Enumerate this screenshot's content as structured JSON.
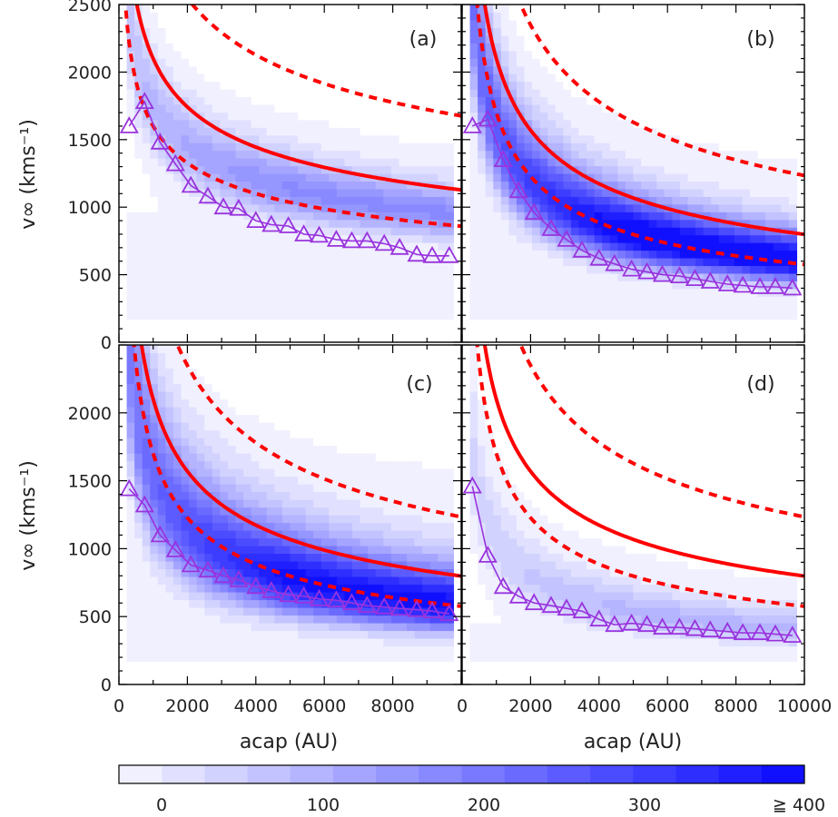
{
  "chart_data": [
    {
      "type": "heatmap",
      "panel_label": "(a)",
      "xlim": [
        0,
        10000
      ],
      "ylim": [
        0,
        2500
      ],
      "yticks": [
        0,
        500,
        1000,
        1500,
        2000,
        2500
      ],
      "ylabel": "v∞ (kms⁻¹)",
      "xlabel": "",
      "curves": {
        "solid": {
          "color": "#ff0000",
          "k": 2100,
          "p": 0.27
        },
        "dashed_upper": {
          "color": "#ff0000",
          "k": 3050,
          "p": 0.26
        },
        "dashed_lower": {
          "color": "#ff0000",
          "k": 1600,
          "p": 0.27
        }
      },
      "triangles": {
        "color": "#9933dd",
        "x": [
          300,
          750,
          1200,
          1650,
          2100,
          2600,
          3050,
          3500,
          4000,
          4450,
          4950,
          5400,
          5850,
          6350,
          6800,
          7250,
          7750,
          8200,
          8700,
          9150,
          9650
        ],
        "y": [
          1600,
          1780,
          1480,
          1320,
          1160,
          1080,
          1000,
          990,
          900,
          870,
          860,
          800,
          790,
          760,
          750,
          750,
          730,
          700,
          650,
          640,
          640
        ]
      },
      "density": {
        "center_k": 2150,
        "spread": 0.15,
        "peak": 180,
        "background": 20
      }
    },
    {
      "type": "heatmap",
      "panel_label": "(b)",
      "xlim": [
        0,
        10000
      ],
      "ylim": [
        0,
        2500
      ],
      "yticks": [],
      "ylabel": "",
      "xlabel": "",
      "curves": {
        "solid": {
          "color": "#ff0000",
          "k": 2100,
          "p": 0.42
        },
        "dashed_upper": {
          "color": "#ff0000",
          "k": 3100,
          "p": 0.4
        },
        "dashed_lower": {
          "color": "#ff0000",
          "k": 1700,
          "p": 0.47
        }
      },
      "triangles": {
        "color": "#9933dd",
        "x": [
          300,
          750,
          1200,
          1650,
          2100,
          2600,
          3050,
          3500,
          4000,
          4450,
          4950,
          5400,
          5850,
          6350,
          6800,
          7250,
          7750,
          8200,
          8700,
          9150,
          9650
        ],
        "y": [
          1600,
          1650,
          1350,
          1120,
          960,
          840,
          760,
          680,
          620,
          580,
          540,
          520,
          500,
          490,
          470,
          450,
          430,
          420,
          410,
          410,
          400
        ]
      },
      "density": {
        "center_k": 1950,
        "spread": 0.22,
        "peak": 420,
        "background": 25
      }
    },
    {
      "type": "heatmap",
      "panel_label": "(c)",
      "xlim": [
        0,
        10000
      ],
      "ylim": [
        0,
        2500
      ],
      "yticks": [
        0,
        500,
        1000,
        1500,
        2000
      ],
      "ylabel": "v∞ (kms⁻¹)",
      "xlabel": "acap (AU)",
      "xticks": [
        0,
        2000,
        4000,
        6000,
        8000
      ],
      "curves": {
        "solid": {
          "color": "#ff0000",
          "k": 2100,
          "p": 0.42
        },
        "dashed_upper": {
          "color": "#ff0000",
          "k": 3100,
          "p": 0.4
        },
        "dashed_lower": {
          "color": "#ff0000",
          "k": 1700,
          "p": 0.47
        }
      },
      "triangles": {
        "color": "#9933dd",
        "x": [
          300,
          750,
          1200,
          1650,
          2100,
          2600,
          3050,
          3500,
          4000,
          4450,
          4950,
          5400,
          5850,
          6350,
          6800,
          7250,
          7750,
          8200,
          8700,
          9150,
          9650
        ],
        "y": [
          1440,
          1320,
          1100,
          990,
          880,
          840,
          800,
          770,
          720,
          690,
          660,
          650,
          630,
          620,
          600,
          580,
          570,
          560,
          550,
          540,
          520
        ]
      },
      "density": {
        "center_k": 1900,
        "spread": 0.28,
        "peak": 380,
        "background": 30
      }
    },
    {
      "type": "heatmap",
      "panel_label": "(d)",
      "xlim": [
        0,
        10000
      ],
      "ylim": [
        0,
        2500
      ],
      "yticks": [],
      "ylabel": "",
      "xlabel": "acap (AU)",
      "xticks": [
        0,
        2000,
        4000,
        6000,
        8000,
        10000
      ],
      "curves": {
        "solid": {
          "color": "#ff0000",
          "k": 2100,
          "p": 0.42
        },
        "dashed_upper": {
          "color": "#ff0000",
          "k": 3100,
          "p": 0.4
        },
        "dashed_lower": {
          "color": "#ff0000",
          "k": 1700,
          "p": 0.47
        }
      },
      "triangles": {
        "color": "#9933dd",
        "x": [
          300,
          750,
          1200,
          1650,
          2100,
          2600,
          3050,
          3500,
          4000,
          4450,
          4950,
          5400,
          5850,
          6350,
          6800,
          7250,
          7750,
          8200,
          8700,
          9150,
          9650
        ],
        "y": [
          1460,
          950,
          720,
          650,
          600,
          580,
          560,
          540,
          480,
          440,
          450,
          440,
          420,
          420,
          410,
          400,
          390,
          380,
          380,
          370,
          360
        ]
      },
      "density": {
        "center_k": 1300,
        "spread": 0.22,
        "peak": 110,
        "background": 15
      }
    }
  ],
  "colorbar": {
    "ticks": [
      0,
      100,
      200,
      300
    ],
    "tick_labels": [
      "0",
      "100",
      "200",
      "300",
      "≧ 400"
    ],
    "max": 400,
    "color_low": "#ffffff",
    "color_high": "#1010ff"
  }
}
